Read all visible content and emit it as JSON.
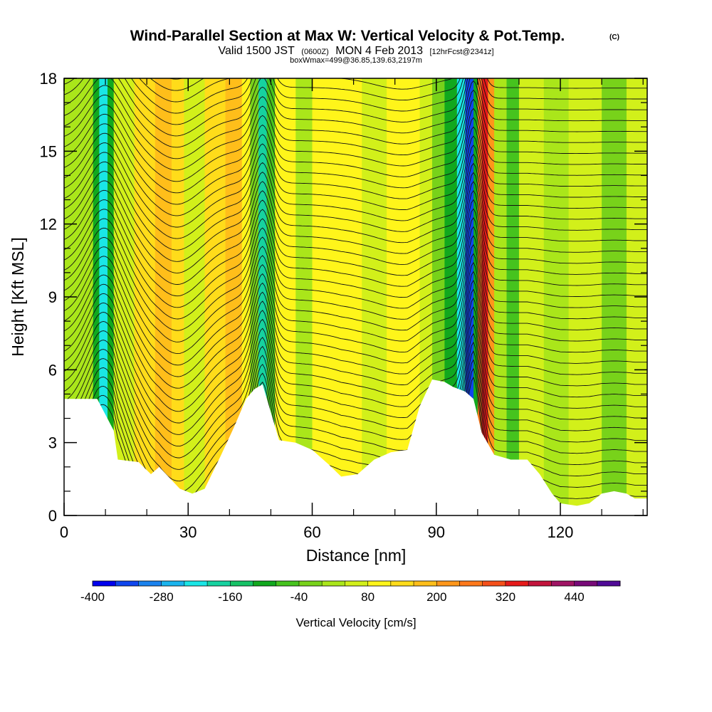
{
  "header": {
    "title": "Wind-Parallel Section at Max W: Vertical Velocity & Pot.Temp.",
    "copyright": "(C)",
    "valid_prefix": "Valid 1500 JST",
    "valid_zulu": "(0600Z)",
    "valid_date": "MON 4 Feb 2013",
    "forecast": "[12hrFcst@2341z]",
    "box_info": "boxWmax=499@36.85,139.63,2197m"
  },
  "chart_data": {
    "type": "heatmap",
    "title": "Wind-Parallel Section at Max W: Vertical Velocity & Pot.Temp.",
    "xlabel": "Distance [nm]",
    "ylabel": "Height [Kft MSL]",
    "xlim": [
      0,
      141
    ],
    "ylim": [
      0,
      18
    ],
    "x_ticks": [
      0,
      30,
      60,
      90,
      120
    ],
    "y_ticks": [
      0,
      3,
      6,
      9,
      12,
      15,
      18
    ],
    "grid": false,
    "terrain_top_kft": [
      [
        0,
        4.8
      ],
      [
        8,
        4.8
      ],
      [
        12,
        3.5
      ],
      [
        13,
        2.3
      ],
      [
        18,
        2.2
      ],
      [
        21,
        1.7
      ],
      [
        23,
        2.0
      ],
      [
        28,
        1.1
      ],
      [
        31,
        0.9
      ],
      [
        34,
        1.1
      ],
      [
        38,
        2.5
      ],
      [
        41,
        3.6
      ],
      [
        44,
        4.8
      ],
      [
        46,
        5.2
      ],
      [
        48,
        5.4
      ],
      [
        52,
        3.1
      ],
      [
        56,
        3.0
      ],
      [
        60,
        2.7
      ],
      [
        64,
        2.1
      ],
      [
        67,
        1.6
      ],
      [
        71,
        1.7
      ],
      [
        75,
        2.3
      ],
      [
        79,
        2.6
      ],
      [
        83,
        2.7
      ],
      [
        86,
        4.5
      ],
      [
        89,
        5.6
      ],
      [
        92,
        5.5
      ],
      [
        94,
        5.3
      ],
      [
        97,
        5.1
      ],
      [
        99,
        4.8
      ],
      [
        101,
        3.4
      ],
      [
        104,
        2.5
      ],
      [
        108,
        2.3
      ],
      [
        112,
        2.3
      ],
      [
        115,
        1.7
      ],
      [
        118,
        0.9
      ],
      [
        120,
        0.5
      ],
      [
        124,
        0.4
      ],
      [
        127,
        0.5
      ],
      [
        130,
        0.9
      ],
      [
        133,
        1.0
      ],
      [
        136,
        0.9
      ],
      [
        138,
        0.7
      ],
      [
        141,
        0.7
      ]
    ],
    "velocity_bands": [
      {
        "x0": 0,
        "x1": 7,
        "w": 0
      },
      {
        "x0": 7,
        "x1": 8.5,
        "w": -100
      },
      {
        "x0": 8.5,
        "x1": 10.5,
        "w": -220
      },
      {
        "x0": 10.5,
        "x1": 12,
        "w": -100
      },
      {
        "x0": 12,
        "x1": 17,
        "w": 60
      },
      {
        "x0": 17,
        "x1": 22,
        "w": 120
      },
      {
        "x0": 22,
        "x1": 26,
        "w": 160
      },
      {
        "x0": 26,
        "x1": 29,
        "w": 120
      },
      {
        "x0": 29,
        "x1": 34,
        "w": 40
      },
      {
        "x0": 34,
        "x1": 39,
        "w": 120
      },
      {
        "x0": 39,
        "x1": 43,
        "w": 160
      },
      {
        "x0": 43,
        "x1": 45,
        "w": 80
      },
      {
        "x0": 45,
        "x1": 47,
        "w": -40
      },
      {
        "x0": 47,
        "x1": 49,
        "w": -180
      },
      {
        "x0": 49,
        "x1": 51,
        "w": -60
      },
      {
        "x0": 51,
        "x1": 56,
        "w": 80
      },
      {
        "x0": 56,
        "x1": 60,
        "w": 20
      },
      {
        "x0": 60,
        "x1": 66,
        "w": 80
      },
      {
        "x0": 66,
        "x1": 72,
        "w": 100
      },
      {
        "x0": 72,
        "x1": 78,
        "w": 60
      },
      {
        "x0": 78,
        "x1": 86,
        "w": 80
      },
      {
        "x0": 86,
        "x1": 89,
        "w": 40
      },
      {
        "x0": 89,
        "x1": 92,
        "w": -20
      },
      {
        "x0": 92,
        "x1": 95,
        "w": -100
      },
      {
        "x0": 95,
        "x1": 97,
        "w": -220
      },
      {
        "x0": 97,
        "x1": 99,
        "w": -340
      },
      {
        "x0": 99,
        "x1": 100,
        "w": -100
      },
      {
        "x0": 100,
        "x1": 101,
        "w": 240
      },
      {
        "x0": 101,
        "x1": 102.5,
        "w": 340
      },
      {
        "x0": 102.5,
        "x1": 104,
        "w": 200
      },
      {
        "x0": 104,
        "x1": 107,
        "w": 20
      },
      {
        "x0": 107,
        "x1": 110,
        "w": -60
      },
      {
        "x0": 110,
        "x1": 116,
        "w": 40
      },
      {
        "x0": 116,
        "x1": 122,
        "w": 20
      },
      {
        "x0": 122,
        "x1": 130,
        "w": 40
      },
      {
        "x0": 130,
        "x1": 136,
        "w": -20
      },
      {
        "x0": 136,
        "x1": 141,
        "w": 40
      }
    ],
    "colorbar": {
      "title": "Vertical Velocity [cm/s]",
      "levels": [
        -400,
        -360,
        -320,
        -280,
        -240,
        -200,
        -160,
        -120,
        -80,
        -40,
        0,
        40,
        80,
        120,
        160,
        200,
        240,
        280,
        320,
        360,
        400,
        440,
        480
      ],
      "tick_labels": [
        "-400",
        "-280",
        "-160",
        "-40",
        "80",
        "200",
        "320",
        "440"
      ],
      "tick_values": [
        -400,
        -280,
        -160,
        -40,
        80,
        200,
        320,
        440
      ],
      "colors": [
        "#0000ee",
        "#0f46ee",
        "#1a82ee",
        "#1ab4ee",
        "#1ae6e6",
        "#16d2a0",
        "#16c266",
        "#11a81e",
        "#46c31e",
        "#78d21a",
        "#aae61a",
        "#d2f01a",
        "#fff51a",
        "#ffdc1a",
        "#ffbe1a",
        "#ff961a",
        "#ff781a",
        "#f5501a",
        "#e61a1a",
        "#c3143c",
        "#a01464",
        "#780a78",
        "#500a96"
      ]
    }
  }
}
